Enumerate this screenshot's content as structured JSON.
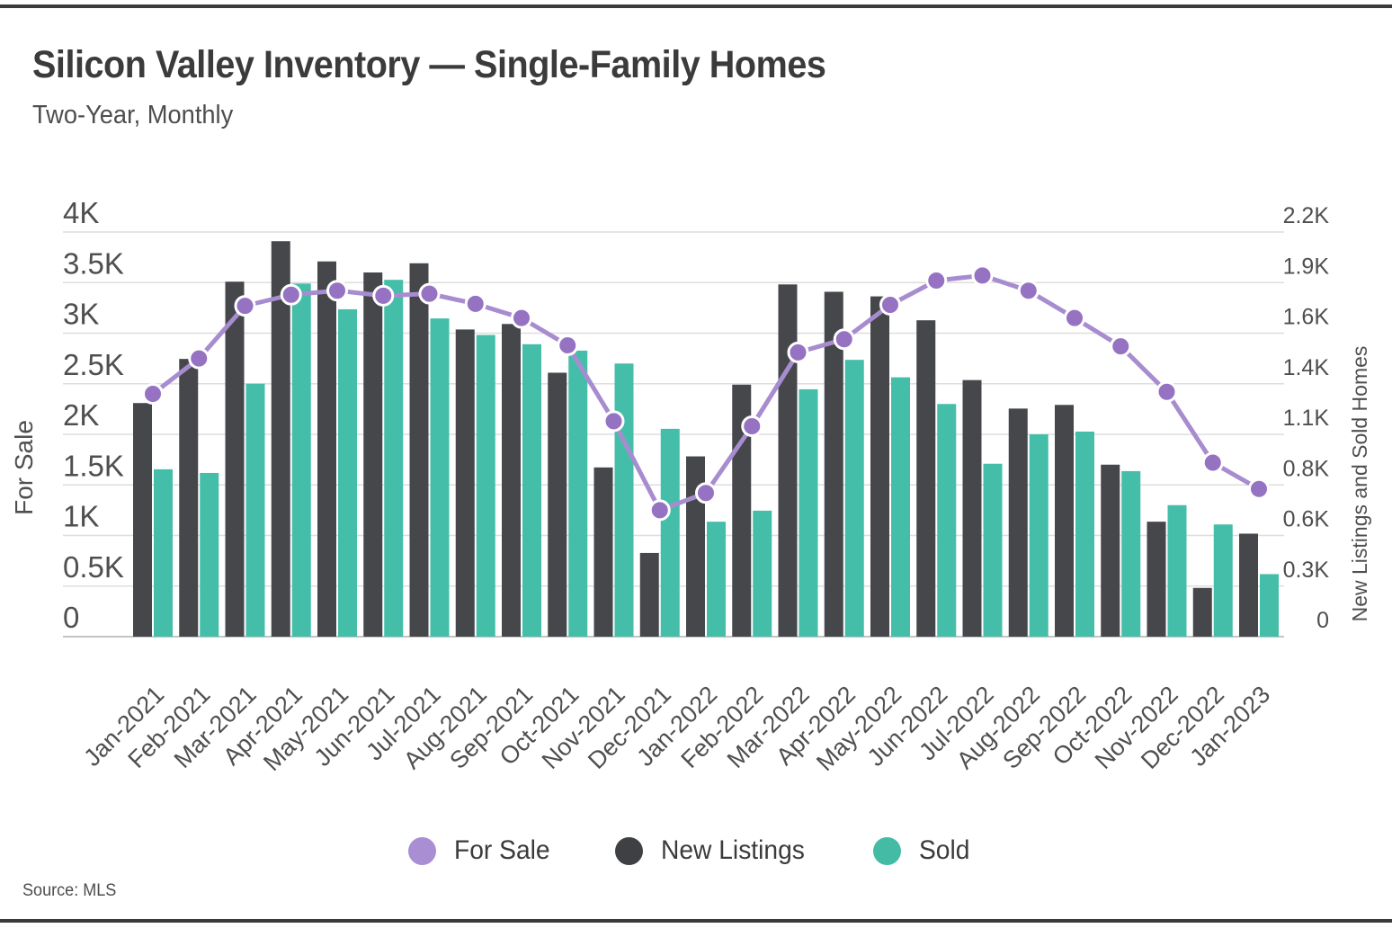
{
  "header": {
    "title": "Silicon Valley Inventory — Single-Family Homes",
    "subtitle": "Two-Year, Monthly"
  },
  "source": "Source: MLS",
  "legend": [
    {
      "label": "For Sale",
      "color": "#A98ED3"
    },
    {
      "label": "New Listings",
      "color": "#3E4043"
    },
    {
      "label": "Sold",
      "color": "#44BCA5"
    }
  ],
  "colors": {
    "for_sale_line": "#A78CCF",
    "for_sale_point": "#9572C2",
    "point_ring": "#ffffff",
    "new_listings_bar": "#45474B",
    "sold_bar": "#45BEA9",
    "gridline": "#dedede",
    "baseline": "#c4c4c4",
    "axis_text": "#4f4f4f"
  },
  "chart_data": {
    "type": "combo",
    "subtypes": [
      "line",
      "bar",
      "bar"
    ],
    "categories": [
      "Jan-2021",
      "Feb-2021",
      "Mar-2021",
      "Apr-2021",
      "May-2021",
      "Jun-2021",
      "Jul-2021",
      "Aug-2021",
      "Sep-2021",
      "Oct-2021",
      "Nov-2021",
      "Dec-2021",
      "Jan-2022",
      "Feb-2022",
      "Mar-2022",
      "Apr-2022",
      "May-2022",
      "Jun-2022",
      "Jul-2022",
      "Aug-2022",
      "Sep-2022",
      "Oct-2022",
      "Nov-2022",
      "Dec-2022",
      "Jan-2023"
    ],
    "series": [
      {
        "name": "For Sale",
        "type": "line",
        "axis": "left",
        "color": "#A78CCF",
        "values": [
          2400,
          2750,
          3270,
          3380,
          3420,
          3370,
          3390,
          3290,
          3150,
          2880,
          2130,
          1250,
          1420,
          2080,
          2810,
          2940,
          3280,
          3520,
          3570,
          3420,
          3150,
          2870,
          2420,
          1720,
          1460
        ]
      },
      {
        "name": "New Listings",
        "type": "bar",
        "axis": "right",
        "color": "#45474B",
        "values": [
          1270,
          1510,
          1930,
          2150,
          2040,
          1980,
          2030,
          1670,
          1700,
          1435,
          920,
          455,
          980,
          1370,
          1915,
          1875,
          1850,
          1720,
          1395,
          1240,
          1260,
          935,
          625,
          265,
          560
        ]
      },
      {
        "name": "Sold",
        "type": "bar",
        "axis": "right",
        "color": "#45BEA9",
        "values": [
          910,
          890,
          1375,
          1920,
          1780,
          1940,
          1730,
          1640,
          1590,
          1555,
          1485,
          1130,
          625,
          685,
          1345,
          1505,
          1410,
          1265,
          940,
          1100,
          1115,
          900,
          715,
          610,
          340
        ]
      }
    ],
    "left_axis": {
      "title": "For Sale",
      "min": 0,
      "max": 4000,
      "tick_values": [
        0,
        500,
        1000,
        1500,
        2000,
        2500,
        3000,
        3500,
        4000
      ],
      "tick_labels": [
        "0",
        "0.5K",
        "1K",
        "1.5K",
        "2K",
        "2.5K",
        "3K",
        "3.5K",
        "4K"
      ]
    },
    "right_axis": {
      "title": "New Listings and Sold Homes",
      "min": 0,
      "max": 2200,
      "tick_values": [
        0,
        275,
        550,
        825,
        1100,
        1375,
        1650,
        1925,
        2200
      ],
      "tick_labels": [
        "0",
        "0.3K",
        "0.6K",
        "0.8K",
        "1.1K",
        "1.4K",
        "1.6K",
        "1.9K",
        "2.2K"
      ]
    },
    "grid": true,
    "x_tick_rotation": -45,
    "legend_position": "bottom"
  }
}
